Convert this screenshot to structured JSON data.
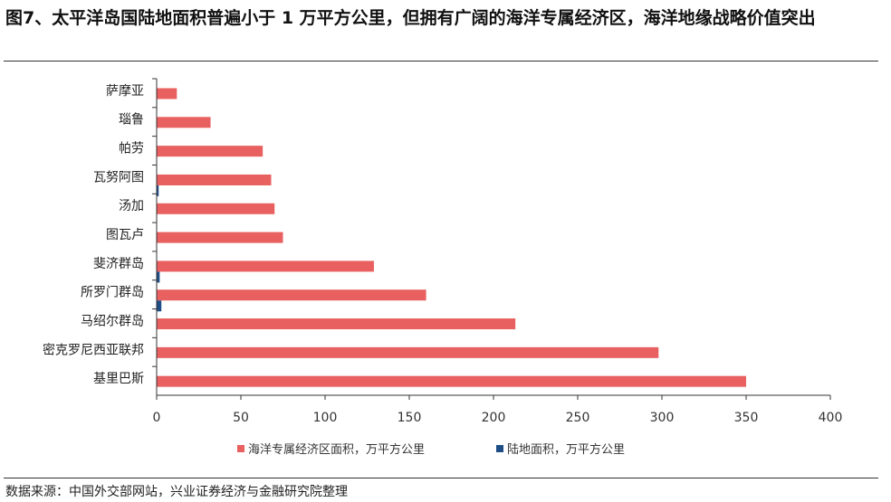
{
  "title": "图7、太平洋岛国陆地面积普遍小于 1 万平方公里，但拥有广阔的海洋专属经济区，海洋地缘战略价值突出",
  "source": "数据来源：中国外交部网站，兴业证券经济与金融研究院整理",
  "chart_data": {
    "type": "bar",
    "orientation": "horizontal",
    "categories": [
      "萨摩亚",
      "瑙鲁",
      "帕劳",
      "瓦努阿图",
      "汤加",
      "图瓦卢",
      "斐济群岛",
      "所罗门群岛",
      "马绍尔群岛",
      "密克罗尼西亚联邦",
      "基里巴斯"
    ],
    "series": [
      {
        "name": "海洋专属经济区面积，万平方公里",
        "color": "#E8605F",
        "values": [
          12,
          32,
          63,
          68,
          70,
          75,
          129,
          160,
          213,
          298,
          350
        ]
      },
      {
        "name": "陆地面积，万平方公里",
        "color": "#1F4E86",
        "values": [
          0.3,
          0.002,
          0.05,
          1.2,
          0.07,
          0.003,
          1.8,
          2.8,
          0.02,
          0.07,
          0.08
        ]
      }
    ],
    "xlim": [
      0,
      400
    ],
    "xticks": [
      0,
      50,
      100,
      150,
      200,
      250,
      300,
      350,
      400
    ],
    "legend": "bottom",
    "grid": false
  }
}
